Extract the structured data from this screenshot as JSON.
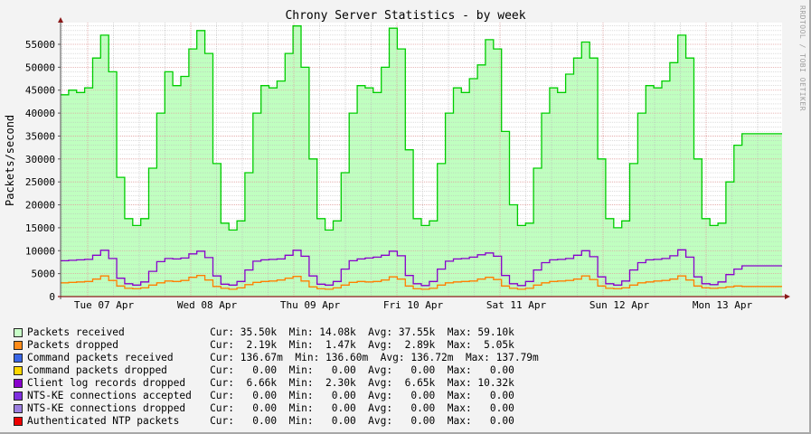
{
  "chart_data": {
    "type": "area",
    "title": "Chrony Server Statistics - by week",
    "ylabel": "Packets/second",
    "xlabel": "",
    "watermark": "RRDTOOL / TOBI OETIKER",
    "ylim": [
      0,
      59000
    ],
    "yticks": [
      0,
      5000,
      10000,
      15000,
      20000,
      25000,
      30000,
      35000,
      40000,
      45000,
      50000,
      55000
    ],
    "ytick_labels": [
      "0",
      "5000",
      "10000",
      "15000",
      "20000",
      "25000",
      "30000",
      "35000",
      "40000",
      "45000",
      "50000",
      "55000"
    ],
    "xtick_labels": [
      "Tue 07 Apr",
      "Wed 08 Apr",
      "Thu 09 Apr",
      "Fri 10 Apr",
      "Sat 11 Apr",
      "Sun 12 Apr",
      "Mon 13 Apr"
    ],
    "grid": true,
    "legend_position": "bottom",
    "x_hours": [
      0,
      2,
      4,
      6,
      8,
      10,
      12,
      14,
      16,
      18,
      20,
      22,
      24,
      26,
      28,
      30,
      32,
      34,
      36,
      38,
      40,
      42,
      44,
      46,
      48,
      50,
      52,
      54,
      56,
      58,
      60,
      62,
      64,
      66,
      68,
      70,
      72,
      74,
      76,
      78,
      80,
      82,
      84,
      86,
      88,
      90,
      92,
      94,
      96,
      98,
      100,
      102,
      104,
      106,
      108,
      110,
      112,
      114,
      116,
      118,
      120,
      122,
      124,
      126,
      128,
      130,
      132,
      134,
      136,
      138,
      140,
      142,
      144,
      146,
      148,
      150,
      152,
      154,
      156,
      158,
      160,
      162,
      164,
      166,
      168,
      170,
      172,
      174,
      176,
      178
    ],
    "series": [
      {
        "name": "Packets received",
        "color": "#00cc00",
        "fill": "#c0ffc0",
        "values": [
          44000,
          45000,
          44500,
          45500,
          52000,
          57000,
          49000,
          26000,
          17000,
          15500,
          17000,
          28000,
          40000,
          49000,
          46000,
          48000,
          54000,
          58000,
          53000,
          29000,
          16000,
          14500,
          16500,
          27000,
          40000,
          46000,
          45500,
          47000,
          53000,
          59000,
          50000,
          30000,
          17000,
          14500,
          16500,
          27000,
          40000,
          46000,
          45500,
          44500,
          50000,
          58500,
          54000,
          32000,
          17000,
          15500,
          16500,
          29000,
          40000,
          45500,
          44500,
          47500,
          50500,
          56000,
          54000,
          36000,
          20000,
          15500,
          16000,
          28000,
          40000,
          45500,
          44500,
          48500,
          52000,
          55500,
          52000,
          30000,
          17000,
          15000,
          16500,
          29000,
          40000,
          46000,
          45500,
          47000,
          51000,
          57000,
          52000,
          30000,
          17000,
          15500,
          16000,
          25000,
          33000,
          35500
        ]
      },
      {
        "name": "Packets dropped",
        "color": "#ff7f00",
        "values": [
          3000,
          3100,
          3200,
          3300,
          3800,
          4500,
          3500,
          2300,
          1800,
          1700,
          1900,
          2500,
          3000,
          3400,
          3300,
          3500,
          4200,
          4600,
          3600,
          2200,
          1800,
          1600,
          1900,
          2600,
          3100,
          3300,
          3400,
          3600,
          4000,
          4400,
          3400,
          2100,
          1700,
          1600,
          1900,
          2500,
          3100,
          3300,
          3200,
          3300,
          3600,
          4300,
          3800,
          2300,
          1700,
          1600,
          1800,
          2500,
          3000,
          3200,
          3300,
          3400,
          3800,
          4200,
          3700,
          2300,
          1800,
          1600,
          1800,
          2500,
          3000,
          3300,
          3400,
          3500,
          3800,
          4500,
          3700,
          2300,
          1800,
          1700,
          1900,
          2500,
          3000,
          3200,
          3400,
          3500,
          3800,
          4500,
          3600,
          2300,
          1900,
          1800,
          1900,
          2100,
          2300,
          2200
        ]
      },
      {
        "name": "Command packets received",
        "color": "#3366ff",
        "values": []
      },
      {
        "name": "Command packets dropped",
        "color": "#ffcc00",
        "values": []
      },
      {
        "name": "Client log records dropped",
        "color": "#8800cc",
        "values": [
          7800,
          7900,
          8000,
          8100,
          9000,
          10100,
          8300,
          4000,
          2800,
          2500,
          3200,
          5500,
          7600,
          8300,
          8200,
          8400,
          9300,
          9900,
          8500,
          4500,
          2700,
          2500,
          3300,
          5800,
          7700,
          8000,
          8100,
          8200,
          9000,
          10100,
          8800,
          4500,
          2700,
          2500,
          3300,
          6000,
          7800,
          8200,
          8400,
          8600,
          9000,
          9900,
          8900,
          4600,
          2800,
          2400,
          3300,
          6000,
          7700,
          8200,
          8300,
          8600,
          9100,
          9500,
          8800,
          4600,
          2800,
          2400,
          3300,
          5800,
          7400,
          8000,
          8100,
          8300,
          9000,
          10000,
          8700,
          4300,
          2800,
          2500,
          3400,
          5800,
          7400,
          8000,
          8100,
          8300,
          8900,
          10200,
          8600,
          4300,
          2800,
          2600,
          3200,
          4800,
          6000,
          6700
        ]
      },
      {
        "name": "NTS-KE connections accepted",
        "color": "#7f37f0",
        "values": []
      },
      {
        "name": "NTS-KE connections dropped",
        "color": "#9966dd",
        "values": []
      },
      {
        "name": "Authenticated NTP packets",
        "color": "#ff0000",
        "values": []
      }
    ]
  },
  "legend": [
    {
      "label": "Packets received",
      "color": "#c8ffc8",
      "cur": "35.50k",
      "min": "14.08k",
      "avg": "37.55k",
      "max": "59.10k"
    },
    {
      "label": "Packets dropped",
      "color": "#ff8c1a",
      "cur": "2.19k",
      "min": "1.47k",
      "avg": "2.89k",
      "max": "5.05k"
    },
    {
      "label": "Command packets received",
      "color": "#3a66e6",
      "cur": "136.67m",
      "min": "136.60m",
      "avg": "136.72m",
      "max": "137.79m"
    },
    {
      "label": "Command packets dropped",
      "color": "#ffd700",
      "cur": "0.00",
      "min": "0.00",
      "avg": "0.00",
      "max": "0.00"
    },
    {
      "label": "Client log records dropped",
      "color": "#8800cc",
      "cur": "6.66k",
      "min": "2.30k",
      "avg": "6.65k",
      "max": "10.32k"
    },
    {
      "label": "NTS-KE connections accepted",
      "color": "#7f2fe0",
      "cur": "0.00",
      "min": "0.00",
      "avg": "0.00",
      "max": "0.00"
    },
    {
      "label": "NTS-KE connections dropped",
      "color": "#9b7fe0",
      "cur": "0.00",
      "min": "0.00",
      "avg": "0.00",
      "max": "0.00"
    },
    {
      "label": "Authenticated NTP packets",
      "color": "#ee0000",
      "cur": "0.00",
      "min": "0.00",
      "avg": "0.00",
      "max": "0.00"
    }
  ],
  "legend_labels": {
    "cur": "Cur:",
    "min": "Min:",
    "avg": "Avg:",
    "max": "Max:"
  }
}
